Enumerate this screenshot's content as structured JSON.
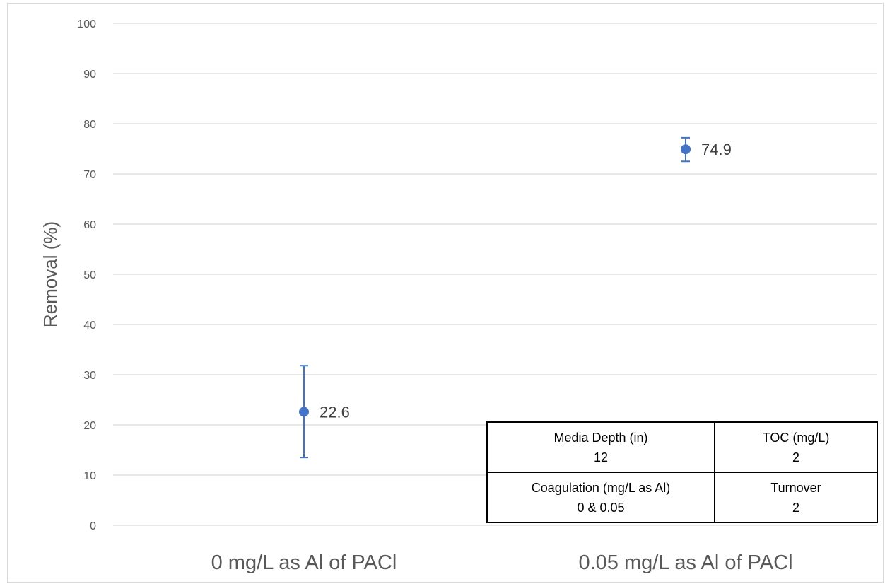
{
  "chart_data": {
    "type": "scatter",
    "categories": [
      "0 mg/L as Al of PACl",
      "0.05 mg/L as Al of PACl"
    ],
    "values": [
      22.6,
      74.9
    ],
    "error_bars": [
      {
        "low": 13.5,
        "high": 31.8
      },
      {
        "low": 72.5,
        "high": 77.2
      }
    ],
    "data_labels": [
      "22.6",
      "74.9"
    ],
    "title": "",
    "xlabel": "",
    "ylabel": "Removal (%)",
    "ylim": [
      0,
      100
    ],
    "yticks": [
      0,
      10,
      20,
      30,
      40,
      50,
      60,
      70,
      80,
      90,
      100
    ],
    "grid": true,
    "legend": "none",
    "marker_color": "#4472c4",
    "grid_color": "#d9d9d9"
  },
  "info_table": {
    "rows": [
      [
        {
          "key": "Media Depth (in)",
          "value": "12"
        },
        {
          "key": "TOC (mg/L)",
          "value": "2"
        }
      ],
      [
        {
          "key": "Coagulation (mg/L as Al)",
          "value": "0 & 0.05"
        },
        {
          "key": "Turnover",
          "value": "2"
        }
      ]
    ]
  }
}
